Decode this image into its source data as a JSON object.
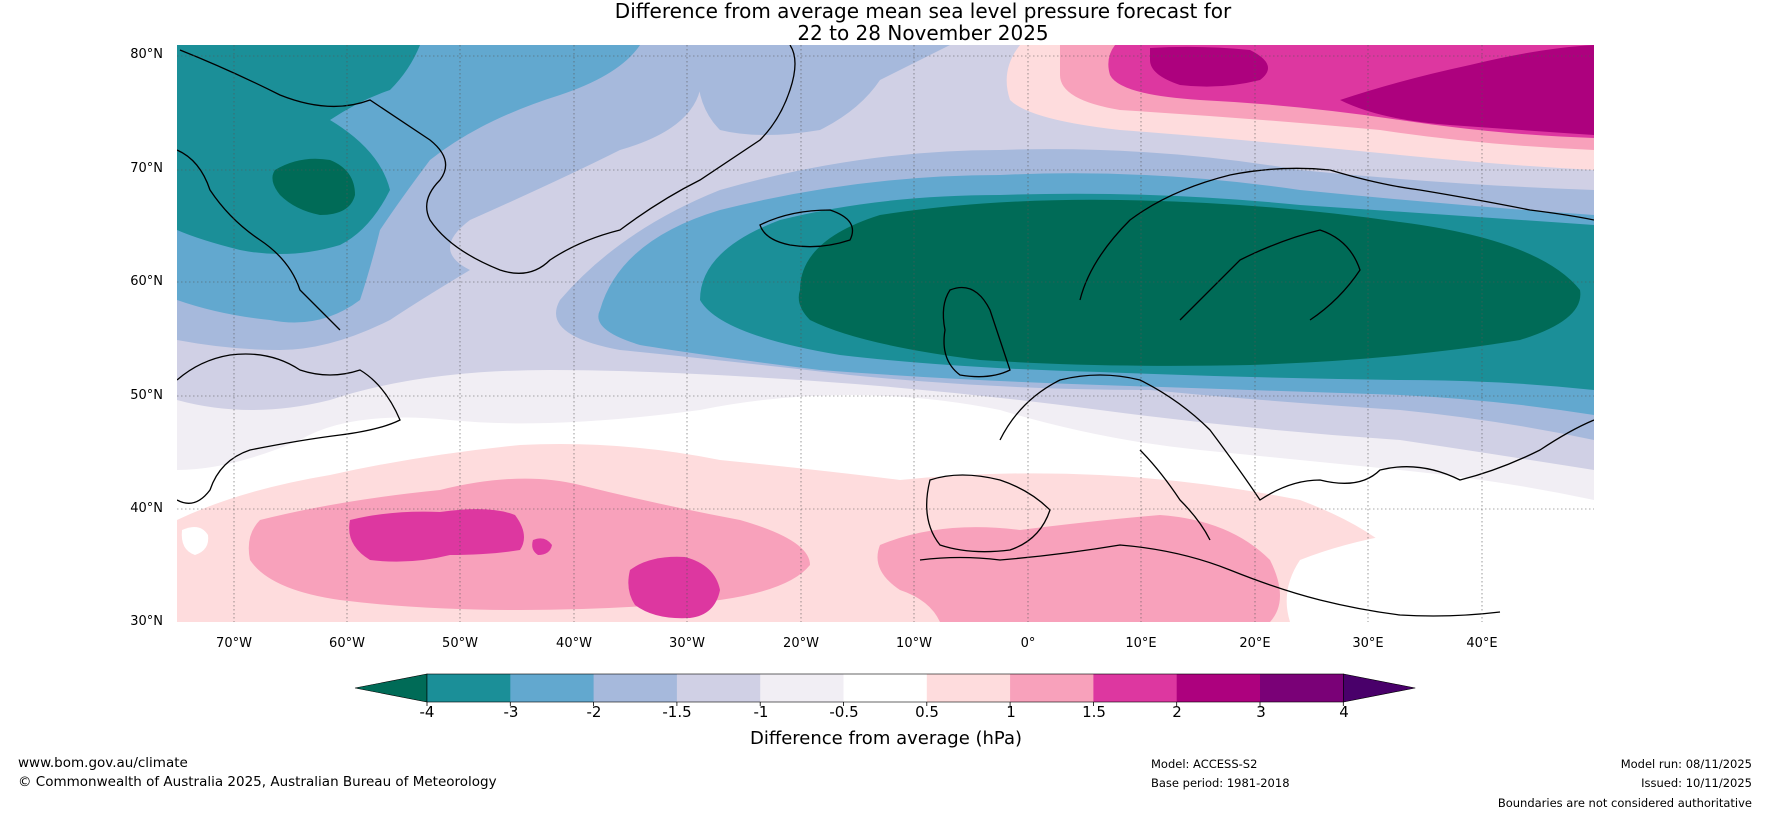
{
  "title": {
    "line1": "Difference from average mean sea level pressure forecast for",
    "line2": "22 to 28 November 2025"
  },
  "map": {
    "latitude_labels": [
      "80°N",
      "70°N",
      "60°N",
      "50°N",
      "40°N",
      "30°N"
    ],
    "longitude_labels": [
      "70°W",
      "60°W",
      "50°W",
      "40°W",
      "30°W",
      "20°W",
      "10°W",
      "0°",
      "10°E",
      "20°E",
      "30°E",
      "40°E"
    ],
    "anomaly_regions": [
      {
        "area": "Scandinavia / North Sea low",
        "category": "below -4"
      },
      {
        "area": "Western Greenland",
        "category": "-4 to -3"
      },
      {
        "area": "Svalbard / Barents Sea high",
        "category": "2 to 3"
      },
      {
        "area": "Subtropical North Atlantic",
        "category": "1.5 to 2"
      }
    ]
  },
  "colorbar": {
    "labels": [
      "-4",
      "-3",
      "-2",
      "-1.5",
      "-1",
      "-0.5",
      "0.5",
      "1",
      "1.5",
      "2",
      "3",
      "4"
    ],
    "colors": [
      "#006b57",
      "#1b8f98",
      "#62a8cf",
      "#a6b9dc",
      "#d0d0e5",
      "#f1eef4",
      "#ffffff",
      "#fedcdd",
      "#f8a1bb",
      "#dd37a0",
      "#ad017e",
      "#7a0177",
      "#49006a"
    ],
    "title": "Difference from average (hPa)"
  },
  "footer": {
    "website": "www.bom.gov.au/climate",
    "copyright": "© Commonwealth of Australia 2025, Australian Bureau of Meteorology",
    "model": "Model: ACCESS-S2",
    "base_period": "Base period: 1981-2018",
    "model_run": "Model run: 08/11/2025",
    "issued": "Issued: 10/11/2025",
    "disclaimer": "Boundaries are not considered authoritative"
  }
}
